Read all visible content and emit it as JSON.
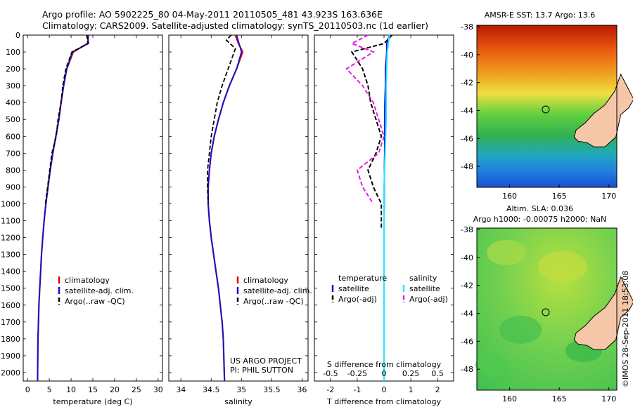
{
  "header": {
    "line1": "Argo profile: AO 5902225_80 04-May-2011 20110505_481 43.923S 163.636E",
    "line2": "Climatology: CARS2009. Satellite-adjusted climatology: synTS_20110503.nc (1d earlier)"
  },
  "colors": {
    "climatology": "#e00000",
    "satellite": "#1010e0",
    "argo": "#000000",
    "sal_satellite": "#20e8ff",
    "sal_argo": "#e020e0",
    "land": "#f5c7a8"
  },
  "panels": {
    "temperature": {
      "xlabel": "temperature (deg C)",
      "legend": [
        "climatology",
        "satellite-adj. clim.",
        "Argo(..raw -QC)"
      ]
    },
    "salinity": {
      "xlabel": "salinity",
      "legend": [
        "climatology",
        "satellite-adj. clim.",
        "Argo(..raw -QC)"
      ],
      "note1": "US ARGO PROJECT",
      "note2": "PI: PHIL SUTTON"
    },
    "difference": {
      "xlabel": "T difference from climatology",
      "top_label": "S difference from climatology",
      "legend_temp_head": "temperature",
      "legend_sal_head": "salinity",
      "legend_temp": [
        "satellite",
        "Argo(-adj)"
      ],
      "legend_sal": [
        "satellite",
        "Argo(-adj)"
      ]
    }
  },
  "maps": {
    "sst_title": "AMSR-E SST: 13.7 Argo: 13.6",
    "sla_title1": "Altim. SLA: 0.036",
    "sla_title2": "Argo h1000: -0.00075 h2000: NaN",
    "credit": "©IMOS 28-Sep-2011 18:53:08",
    "lon_ticks": [
      "160",
      "165",
      "170"
    ],
    "lat_ticks": [
      "-38",
      "-40",
      "-42",
      "-44",
      "-46",
      "-48"
    ],
    "float_lon": 163.636,
    "float_lat": -43.923
  },
  "chart_data": [
    {
      "type": "line",
      "xlabel": "temperature (deg C)",
      "ylabel": "",
      "xlim": [
        -1,
        31
      ],
      "ylim": [
        2050,
        0
      ],
      "yticks": [
        "0",
        "100",
        "200",
        "300",
        "400",
        "500",
        "600",
        "700",
        "800",
        "900",
        "1000",
        "1100",
        "1200",
        "1300",
        "1400",
        "1500",
        "1600",
        "1700",
        "1800",
        "1900",
        "2000"
      ],
      "xticks": [
        "0",
        "5",
        "10",
        "15",
        "20",
        "25",
        "30"
      ],
      "series": [
        {
          "name": "climatology",
          "x": [
            14,
            13.8,
            10.5,
            9,
            8.3,
            7.7,
            7.2,
            6.5,
            5.8,
            5.2,
            4.7,
            4.2,
            3.8,
            3.5,
            3.2,
            3,
            2.8,
            2.6,
            2.5,
            2.4,
            2.3
          ],
          "y": [
            0,
            50,
            100,
            200,
            300,
            400,
            500,
            600,
            700,
            800,
            900,
            1000,
            1100,
            1200,
            1300,
            1400,
            1500,
            1600,
            1700,
            1800,
            2050
          ]
        },
        {
          "name": "satellite-adj. clim.",
          "x": [
            13.8,
            14,
            10.3,
            9,
            8.3,
            7.7,
            7.2,
            6.5,
            5.8,
            5.2,
            4.7,
            4.2,
            3.8,
            3.5,
            3.2,
            3,
            2.8,
            2.6,
            2.5,
            2.4,
            2.3
          ],
          "y": [
            0,
            50,
            100,
            200,
            300,
            400,
            500,
            600,
            700,
            800,
            900,
            1000,
            1100,
            1200,
            1300,
            1400,
            1500,
            1600,
            1700,
            1800,
            2050
          ]
        },
        {
          "name": "Argo(..raw -QC)",
          "x": [
            13.6,
            13.9,
            10.2,
            8.8,
            8.1,
            7.7,
            7,
            6.6,
            5.6,
            5.1,
            4.6,
            4.1
          ],
          "y": [
            0,
            50,
            100,
            200,
            300,
            400,
            500,
            600,
            700,
            800,
            900,
            1000
          ]
        }
      ]
    },
    {
      "type": "line",
      "xlabel": "salinity",
      "ylabel": "",
      "xlim": [
        33.8,
        36.1
      ],
      "ylim": [
        2050,
        0
      ],
      "xticks": [
        "34",
        "34.5",
        "35",
        "35.5",
        "36"
      ],
      "series": [
        {
          "name": "climatology",
          "x": [
            34.9,
            34.95,
            35.02,
            34.92,
            34.8,
            34.7,
            34.62,
            34.55,
            34.5,
            34.47,
            34.45,
            34.45,
            34.47,
            34.5,
            34.54,
            34.58,
            34.62,
            34.65,
            34.68,
            34.7,
            34.72
          ],
          "y": [
            0,
            50,
            100,
            200,
            300,
            400,
            500,
            600,
            700,
            800,
            900,
            1000,
            1100,
            1200,
            1300,
            1400,
            1500,
            1600,
            1700,
            1800,
            2050
          ]
        },
        {
          "name": "satellite-adj. clim.",
          "x": [
            34.92,
            34.96,
            35.0,
            34.92,
            34.8,
            34.7,
            34.62,
            34.55,
            34.5,
            34.47,
            34.45,
            34.45,
            34.47,
            34.5,
            34.54,
            34.58,
            34.62,
            34.65,
            34.68,
            34.7,
            34.72
          ],
          "y": [
            0,
            50,
            100,
            200,
            300,
            400,
            500,
            600,
            700,
            800,
            900,
            1000,
            1100,
            1200,
            1300,
            1400,
            1500,
            1600,
            1700,
            1800,
            2050
          ]
        },
        {
          "name": "Argo(..raw -QC)",
          "x": [
            34.83,
            34.75,
            34.9,
            34.78,
            34.68,
            34.6,
            34.55,
            34.5,
            34.47,
            34.44,
            34.44,
            34.45
          ],
          "y": [
            0,
            30,
            80,
            200,
            300,
            400,
            500,
            600,
            700,
            800,
            900,
            1000
          ]
        }
      ]
    },
    {
      "type": "line",
      "xlabel": "T difference from climatology",
      "ylabel": "",
      "xlim": [
        -2.6,
        2.6
      ],
      "ylim": [
        2050,
        0
      ],
      "xticks": [
        "-2",
        "-1",
        "0",
        "1",
        "2"
      ],
      "top_xticks": [
        "-0.5",
        "-0.25",
        "0",
        "0.25",
        "0.5"
      ],
      "series": [
        {
          "name": "satellite",
          "x": [
            0.2,
            0.1,
            0.1,
            0.05,
            0.05,
            0.03,
            0.02,
            0.02,
            0.02,
            0.01,
            0.01,
            0.01,
            0,
            0,
            0,
            0,
            0,
            0,
            0,
            0,
            0
          ],
          "y": [
            0,
            50,
            100,
            200,
            300,
            400,
            500,
            600,
            700,
            800,
            900,
            1000,
            1100,
            1200,
            1300,
            1400,
            1500,
            1600,
            1700,
            1800,
            2050
          ]
        },
        {
          "name": "Argo(-adj)",
          "x": [
            0.3,
            0,
            -1.2,
            -0.8,
            -0.6,
            -0.5,
            -0.3,
            -0.1,
            -0.3,
            -0.6,
            -0.4,
            -0.1,
            -0.1
          ],
          "y": [
            0,
            50,
            100,
            200,
            300,
            400,
            500,
            600,
            700,
            800,
            900,
            1000,
            1150
          ]
        },
        {
          "name": "satellite",
          "x": [
            0.05,
            0.03,
            0.02,
            0.02,
            0.01,
            0,
            0,
            0,
            0,
            0,
            0,
            0
          ],
          "y": [
            0,
            100,
            300,
            500,
            700,
            900,
            1100,
            1300,
            1500,
            1700,
            1900,
            2050
          ]
        },
        {
          "name": "Argo(-adj)",
          "x": [
            -0.15,
            -0.3,
            -0.1,
            -0.35,
            -0.2,
            -0.1,
            -0.05,
            0,
            -0.05,
            -0.25,
            -0.2,
            -0.1
          ],
          "y": [
            0,
            50,
            100,
            200,
            300,
            400,
            500,
            600,
            700,
            800,
            900,
            1000
          ]
        }
      ]
    }
  ]
}
